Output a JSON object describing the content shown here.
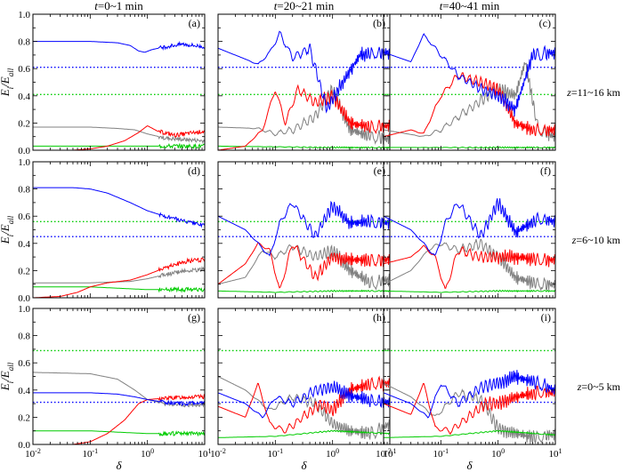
{
  "chart_data": {
    "type": "line",
    "column_titles": [
      "t=0~1 min",
      "t=20~21 min",
      "t=40~41 min"
    ],
    "row_labels": [
      "z=11~16 km",
      "z=6~10 km",
      "z=0~5 km"
    ],
    "ylabel": "Ei/Eall",
    "xlabel": "δ",
    "xscale": "log",
    "xlim": [
      0.01,
      10
    ],
    "ylim": [
      0,
      1.0
    ],
    "x_ticks": [
      "10-2",
      "10-1",
      "100",
      "101"
    ],
    "y_ticks": [
      "0.0",
      "0.2",
      "0.4",
      "0.6",
      "0.8",
      "1.0"
    ],
    "colors": {
      "blue": "#0000ff",
      "red": "#ff0000",
      "gray": "#808080",
      "green": "#00cc00"
    },
    "panels": [
      {
        "label": "(a)",
        "row": 0,
        "col": 0,
        "blue_ref": 0.61,
        "green_ref": 0.41,
        "series": {
          "blue": {
            "x": [
              0.01,
              0.1,
              0.3,
              0.5,
              0.7,
              0.9,
              1.2,
              2,
              4,
              10
            ],
            "y": [
              0.8,
              0.8,
              0.79,
              0.77,
              0.73,
              0.72,
              0.74,
              0.76,
              0.78,
              0.76
            ]
          },
          "red": {
            "x": [
              0.01,
              0.05,
              0.1,
              0.2,
              0.4,
              0.7,
              1.0,
              1.5,
              3,
              10
            ],
            "y": [
              0.0,
              0.0,
              0.01,
              0.03,
              0.07,
              0.13,
              0.18,
              0.14,
              0.11,
              0.14
            ]
          },
          "gray": {
            "x": [
              0.01,
              0.1,
              0.3,
              0.6,
              1.0,
              2,
              4,
              10
            ],
            "y": [
              0.17,
              0.17,
              0.16,
              0.15,
              0.12,
              0.09,
              0.08,
              0.07
            ]
          },
          "green": {
            "x": [
              0.01,
              1,
              10
            ],
            "y": [
              0.03,
              0.03,
              0.03
            ]
          }
        }
      },
      {
        "label": "(b)",
        "row": 0,
        "col": 1,
        "blue_ref": 0.61,
        "green_ref": 0.41,
        "series": {
          "blue": {
            "x": [
              0.01,
              0.03,
              0.05,
              0.08,
              0.12,
              0.2,
              0.4,
              0.8,
              1.5,
              3,
              10
            ],
            "y": [
              0.75,
              0.67,
              0.63,
              0.72,
              0.86,
              0.68,
              0.75,
              0.3,
              0.5,
              0.7,
              0.72
            ]
          },
          "red": {
            "x": [
              0.01,
              0.03,
              0.06,
              0.1,
              0.15,
              0.25,
              0.5,
              1,
              2,
              5,
              10
            ],
            "y": [
              0.0,
              0.03,
              0.15,
              0.45,
              0.2,
              0.45,
              0.35,
              0.4,
              0.2,
              0.17,
              0.18
            ]
          },
          "gray": {
            "x": [
              0.01,
              0.05,
              0.1,
              0.2,
              0.5,
              1,
              2,
              5,
              10
            ],
            "y": [
              0.17,
              0.16,
              0.12,
              0.15,
              0.25,
              0.45,
              0.15,
              0.1,
              0.08
            ]
          },
          "green": {
            "x": [
              0.01,
              1,
              10
            ],
            "y": [
              0.03,
              0.02,
              0.02
            ]
          }
        }
      },
      {
        "label": "(c)",
        "row": 0,
        "col": 2,
        "blue_ref": 0.61,
        "green_ref": 0.41,
        "series": {
          "blue": {
            "x": [
              0.01,
              0.03,
              0.05,
              0.1,
              0.2,
              0.5,
              1,
              2,
              4,
              10
            ],
            "y": [
              0.72,
              0.65,
              0.85,
              0.7,
              0.55,
              0.45,
              0.4,
              0.3,
              0.7,
              0.72
            ]
          },
          "red": {
            "x": [
              0.01,
              0.03,
              0.05,
              0.1,
              0.2,
              0.5,
              1,
              2,
              4,
              10
            ],
            "y": [
              0.1,
              0.15,
              0.12,
              0.4,
              0.55,
              0.5,
              0.45,
              0.2,
              0.15,
              0.15
            ]
          },
          "gray": {
            "x": [
              0.01,
              0.05,
              0.1,
              0.3,
              1,
              2,
              3,
              5,
              10
            ],
            "y": [
              0.15,
              0.1,
              0.15,
              0.3,
              0.45,
              0.4,
              0.65,
              0.15,
              0.1
            ]
          },
          "green": {
            "x": [
              0.01,
              1,
              10
            ],
            "y": [
              0.02,
              0.02,
              0.02
            ]
          }
        }
      },
      {
        "label": "(d)",
        "row": 1,
        "col": 0,
        "blue_ref": 0.45,
        "green_ref": 0.56,
        "series": {
          "blue": {
            "x": [
              0.01,
              0.05,
              0.1,
              0.2,
              0.5,
              1,
              2,
              5,
              10
            ],
            "y": [
              0.81,
              0.81,
              0.8,
              0.77,
              0.7,
              0.64,
              0.6,
              0.56,
              0.53
            ]
          },
          "red": {
            "x": [
              0.01,
              0.03,
              0.06,
              0.1,
              0.2,
              0.5,
              1,
              2,
              5,
              10
            ],
            "y": [
              0.0,
              0.01,
              0.04,
              0.08,
              0.11,
              0.13,
              0.17,
              0.22,
              0.27,
              0.28
            ]
          },
          "gray": {
            "x": [
              0.01,
              0.1,
              0.5,
              1,
              2,
              5,
              10
            ],
            "y": [
              0.11,
              0.11,
              0.12,
              0.14,
              0.17,
              0.2,
              0.21
            ]
          },
          "green": {
            "x": [
              0.01,
              0.1,
              1,
              10
            ],
            "y": [
              0.08,
              0.08,
              0.06,
              0.06
            ]
          }
        }
      },
      {
        "label": "(e)",
        "row": 1,
        "col": 1,
        "blue_ref": 0.45,
        "green_ref": 0.56,
        "series": {
          "blue": {
            "x": [
              0.01,
              0.03,
              0.05,
              0.08,
              0.12,
              0.2,
              0.5,
              1,
              2,
              5,
              10
            ],
            "y": [
              0.6,
              0.5,
              0.4,
              0.3,
              0.55,
              0.7,
              0.45,
              0.68,
              0.55,
              0.56,
              0.55
            ]
          },
          "red": {
            "x": [
              0.01,
              0.03,
              0.05,
              0.08,
              0.12,
              0.2,
              0.5,
              1,
              2,
              5,
              10
            ],
            "y": [
              0.1,
              0.25,
              0.4,
              0.35,
              0.05,
              0.4,
              0.15,
              0.3,
              0.28,
              0.28,
              0.28
            ]
          },
          "gray": {
            "x": [
              0.01,
              0.03,
              0.06,
              0.1,
              0.2,
              0.5,
              1,
              2,
              5,
              10
            ],
            "y": [
              0.1,
              0.15,
              0.35,
              0.3,
              0.38,
              0.3,
              0.35,
              0.2,
              0.1,
              0.14
            ]
          },
          "green": {
            "x": [
              0.01,
              0.1,
              1,
              10
            ],
            "y": [
              0.05,
              0.04,
              0.05,
              0.05
            ]
          }
        }
      },
      {
        "label": "(f)",
        "row": 1,
        "col": 2,
        "blue_ref": 0.45,
        "green_ref": 0.56,
        "series": {
          "blue": {
            "x": [
              0.01,
              0.03,
              0.05,
              0.08,
              0.12,
              0.2,
              0.5,
              1,
              2,
              5,
              10
            ],
            "y": [
              0.6,
              0.5,
              0.4,
              0.3,
              0.55,
              0.7,
              0.45,
              0.7,
              0.48,
              0.58,
              0.56
            ]
          },
          "red": {
            "x": [
              0.01,
              0.03,
              0.05,
              0.08,
              0.12,
              0.2,
              0.5,
              1,
              2,
              5,
              10
            ],
            "y": [
              0.25,
              0.3,
              0.38,
              0.3,
              0.05,
              0.35,
              0.3,
              0.3,
              0.3,
              0.28,
              0.28
            ]
          },
          "gray": {
            "x": [
              0.01,
              0.03,
              0.06,
              0.1,
              0.2,
              0.5,
              1,
              2,
              5,
              10
            ],
            "y": [
              0.1,
              0.2,
              0.35,
              0.4,
              0.35,
              0.4,
              0.3,
              0.15,
              0.1,
              0.1
            ]
          },
          "green": {
            "x": [
              0.01,
              0.1,
              1,
              10
            ],
            "y": [
              0.05,
              0.04,
              0.05,
              0.05
            ]
          }
        }
      },
      {
        "label": "(g)",
        "row": 2,
        "col": 0,
        "blue_ref": 0.31,
        "green_ref": 0.69,
        "series": {
          "blue": {
            "x": [
              0.01,
              0.1,
              0.3,
              0.6,
              1,
              2,
              5,
              10
            ],
            "y": [
              0.38,
              0.38,
              0.37,
              0.35,
              0.33,
              0.31,
              0.3,
              0.31
            ]
          },
          "red": {
            "x": [
              0.01,
              0.05,
              0.1,
              0.2,
              0.4,
              0.7,
              1,
              2,
              5,
              10
            ],
            "y": [
              0.0,
              0.0,
              0.02,
              0.08,
              0.18,
              0.3,
              0.33,
              0.34,
              0.35,
              0.35
            ]
          },
          "gray": {
            "x": [
              0.01,
              0.1,
              0.3,
              0.6,
              1,
              2,
              5,
              10
            ],
            "y": [
              0.53,
              0.52,
              0.48,
              0.4,
              0.33,
              0.3,
              0.29,
              0.29
            ]
          },
          "green": {
            "x": [
              0.01,
              0.1,
              1,
              10
            ],
            "y": [
              0.1,
              0.1,
              0.08,
              0.08
            ]
          }
        }
      },
      {
        "label": "(h)",
        "row": 2,
        "col": 1,
        "blue_ref": 0.31,
        "green_ref": 0.69,
        "series": {
          "blue": {
            "x": [
              0.01,
              0.03,
              0.06,
              0.1,
              0.2,
              0.5,
              1,
              2,
              5,
              10
            ],
            "y": [
              0.38,
              0.3,
              0.2,
              0.35,
              0.3,
              0.4,
              0.42,
              0.36,
              0.32,
              0.31
            ]
          },
          "red": {
            "x": [
              0.01,
              0.03,
              0.05,
              0.08,
              0.15,
              0.3,
              0.6,
              1,
              2,
              5,
              10
            ],
            "y": [
              0.28,
              0.2,
              0.45,
              0.15,
              0.1,
              0.2,
              0.3,
              0.25,
              0.4,
              0.45,
              0.45
            ]
          },
          "gray": {
            "x": [
              0.01,
              0.03,
              0.08,
              0.2,
              0.5,
              1,
              2,
              5,
              10
            ],
            "y": [
              0.5,
              0.4,
              0.25,
              0.35,
              0.3,
              0.15,
              0.1,
              0.08,
              0.15
            ]
          },
          "green": {
            "x": [
              0.01,
              0.1,
              1,
              10
            ],
            "y": [
              0.05,
              0.06,
              0.1,
              0.08
            ]
          }
        }
      },
      {
        "label": "(i)",
        "row": 2,
        "col": 2,
        "blue_ref": 0.31,
        "green_ref": 0.69,
        "series": {
          "blue": {
            "x": [
              0.01,
              0.03,
              0.06,
              0.1,
              0.2,
              0.5,
              1,
              2,
              5,
              10
            ],
            "y": [
              0.38,
              0.3,
              0.2,
              0.45,
              0.3,
              0.42,
              0.45,
              0.5,
              0.45,
              0.4
            ]
          },
          "red": {
            "x": [
              0.01,
              0.03,
              0.05,
              0.08,
              0.15,
              0.3,
              0.6,
              1,
              2,
              5,
              10
            ],
            "y": [
              0.3,
              0.22,
              0.45,
              0.12,
              0.1,
              0.2,
              0.3,
              0.3,
              0.35,
              0.38,
              0.38
            ]
          },
          "gray": {
            "x": [
              0.01,
              0.03,
              0.08,
              0.2,
              0.5,
              1,
              2,
              5,
              10
            ],
            "y": [
              0.45,
              0.35,
              0.2,
              0.38,
              0.33,
              0.12,
              0.08,
              0.05,
              0.08
            ]
          },
          "green": {
            "x": [
              0.01,
              0.1,
              1,
              10
            ],
            "y": [
              0.05,
              0.06,
              0.1,
              0.07
            ]
          }
        }
      }
    ]
  }
}
